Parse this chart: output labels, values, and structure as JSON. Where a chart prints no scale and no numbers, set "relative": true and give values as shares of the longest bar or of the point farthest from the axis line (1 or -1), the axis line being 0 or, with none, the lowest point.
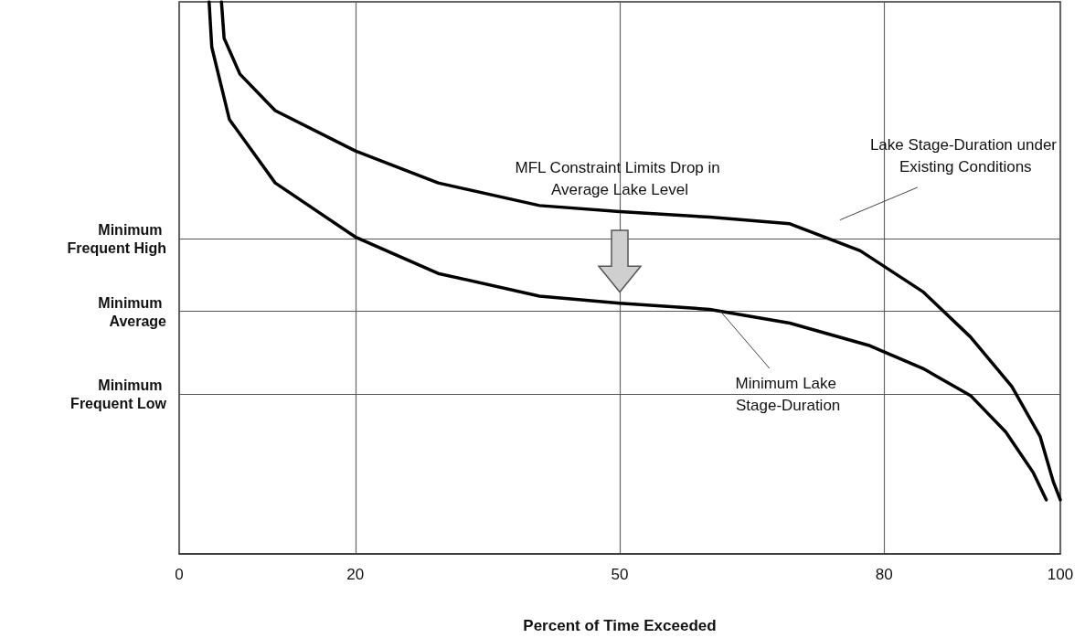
{
  "chart_data": {
    "type": "line",
    "xlabel": "Percent of Time Exceeded",
    "relative": true,
    "xlim": [
      0,
      100
    ],
    "xticks": [
      0,
      20,
      50,
      80,
      100
    ],
    "grid": "x",
    "line_style": "solid",
    "marker": "none",
    "series": [
      {
        "color": "#000000",
        "x": [
          4.8,
          5.1,
          6.9,
          10.9,
          20,
          29.4,
          40.9,
          50,
          60.2,
          69.3,
          77.3,
          84.4,
          89.8,
          94.5,
          97.7,
          99.2,
          100
        ],
        "values": [
          1,
          0.934,
          0.869,
          0.803,
          0.73,
          0.672,
          0.631,
          0.62,
          0.61,
          0.598,
          0.549,
          0.475,
          0.393,
          0.303,
          0.213,
          0.131,
          0.098
        ]
      },
      {
        "color": "#000000",
        "x": [
          3.4,
          3.7,
          5.7,
          10.9,
          20,
          29.4,
          40.9,
          50,
          60.2,
          69.3,
          78.4,
          84.4,
          89.8,
          93.8,
          96.9,
          98.4
        ],
        "values": [
          1,
          0.918,
          0.787,
          0.672,
          0.574,
          0.508,
          0.467,
          0.454,
          0.443,
          0.418,
          0.377,
          0.336,
          0.287,
          0.221,
          0.148,
          0.098
        ]
      }
    ],
    "ref_lines": [
      {
        "axis": "y",
        "value": 0.57,
        "label": "Minimum Frequent High",
        "color": "#555555"
      },
      {
        "axis": "y",
        "value": 0.438,
        "label": "Minimum Average",
        "color": "#555555"
      },
      {
        "axis": "y",
        "value": 0.289,
        "label": "Minimum Frequent Low",
        "color": "#555555"
      }
    ],
    "annotations": [
      "MFL Constraint Limits Drop in Average Lake Level",
      "Lake Stage-Duration under Existing Conditions",
      {
        "text": "Minimum Lake Stage-Duration",
        "x": 61.4,
        "y": 0.44
      }
    ]
  }
}
